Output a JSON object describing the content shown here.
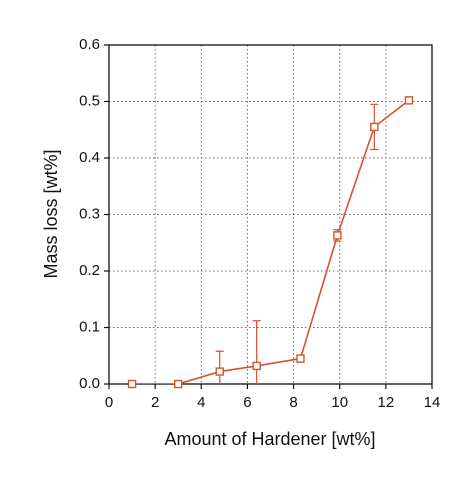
{
  "chart_data": {
    "type": "line",
    "xlabel": "Amount of Hardener [wt%]",
    "ylabel": "Mass loss [wt%]",
    "x": [
      1,
      3,
      4.8,
      6.4,
      8.3,
      9.9,
      11.5,
      13
    ],
    "series": [
      {
        "name": "Mass loss",
        "color": "#d4532f",
        "values": [
          0,
          0,
          0.022,
          0.032,
          0.045,
          0.263,
          0.455,
          0.502
        ],
        "errors": [
          null,
          null,
          0.036,
          0.08,
          0.005,
          0.01,
          0.04,
          0.005
        ]
      }
    ],
    "xlim": [
      0,
      14
    ],
    "xticks": [
      0,
      2,
      4,
      6,
      8,
      10,
      12,
      14
    ],
    "ylim": [
      0,
      0.6
    ],
    "yticks": [
      {
        "value": 0,
        "label": "0.0"
      },
      0.1,
      0.2,
      0.3,
      0.4,
      0.5,
      0.6
    ],
    "grid": true
  }
}
